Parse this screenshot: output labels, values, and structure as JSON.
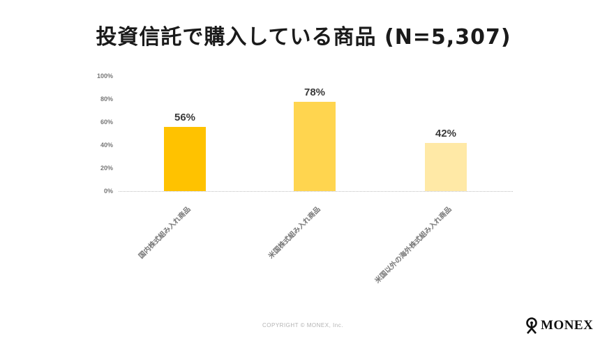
{
  "header": {
    "title": "投資信託で購入している商品 (N=5,307)"
  },
  "chart_data": {
    "type": "bar",
    "title": "投資信託で購入している商品 (N=5,307)",
    "categories": [
      "国内株式組み入れ商品",
      "米国株式組み入れ商品",
      "米国以外の海外株式組み入れ商品"
    ],
    "values": [
      56,
      78,
      42
    ],
    "value_labels": [
      "56%",
      "78%",
      "42%"
    ],
    "colors": [
      "#FFC200",
      "#FFD54F",
      "#FFE9A6"
    ],
    "xlabel": "",
    "ylabel": "",
    "ylim": [
      0,
      100
    ],
    "yticks": [
      "100%",
      "80%",
      "60%",
      "40%",
      "20%",
      "0%"
    ],
    "grid": false,
    "legend": "none"
  },
  "footer": {
    "copyright": "COPYRIGHT © MONEX, Inc.",
    "logo_text": "MONEX"
  }
}
